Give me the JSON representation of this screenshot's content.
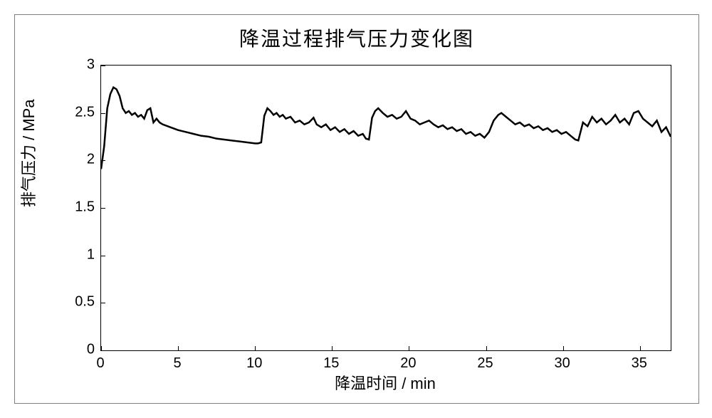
{
  "chart": {
    "type": "line",
    "title": "降温过程排气压力变化图",
    "title_fontsize": 28,
    "xlabel": "降温时间 / min",
    "ylabel": "排气压力 / MPa",
    "label_fontsize": 22,
    "tick_fontsize": 20,
    "xlim": [
      0,
      37
    ],
    "ylim": [
      0,
      3
    ],
    "xticks": [
      0,
      5,
      10,
      15,
      20,
      25,
      30,
      35
    ],
    "yticks": [
      0,
      0.5,
      1,
      1.5,
      2,
      2.5,
      3
    ],
    "line_color": "#000000",
    "line_width": 2.5,
    "background_color": "#ffffff",
    "border_color": "#000000",
    "outer_border_color": "#808080",
    "data": [
      [
        0.0,
        1.91
      ],
      [
        0.2,
        2.15
      ],
      [
        0.4,
        2.55
      ],
      [
        0.6,
        2.7
      ],
      [
        0.8,
        2.77
      ],
      [
        1.0,
        2.75
      ],
      [
        1.2,
        2.68
      ],
      [
        1.4,
        2.55
      ],
      [
        1.6,
        2.5
      ],
      [
        1.8,
        2.52
      ],
      [
        2.0,
        2.48
      ],
      [
        2.2,
        2.5
      ],
      [
        2.4,
        2.46
      ],
      [
        2.6,
        2.48
      ],
      [
        2.8,
        2.44
      ],
      [
        3.0,
        2.53
      ],
      [
        3.2,
        2.55
      ],
      [
        3.4,
        2.4
      ],
      [
        3.6,
        2.44
      ],
      [
        3.8,
        2.4
      ],
      [
        4.0,
        2.38
      ],
      [
        4.5,
        2.35
      ],
      [
        5.0,
        2.32
      ],
      [
        5.5,
        2.3
      ],
      [
        6.0,
        2.28
      ],
      [
        6.5,
        2.26
      ],
      [
        7.0,
        2.25
      ],
      [
        7.5,
        2.23
      ],
      [
        8.0,
        2.22
      ],
      [
        8.5,
        2.21
      ],
      [
        9.0,
        2.2
      ],
      [
        9.5,
        2.19
      ],
      [
        10.0,
        2.18
      ],
      [
        10.2,
        2.18
      ],
      [
        10.4,
        2.19
      ],
      [
        10.6,
        2.47
      ],
      [
        10.8,
        2.55
      ],
      [
        11.0,
        2.52
      ],
      [
        11.2,
        2.48
      ],
      [
        11.4,
        2.5
      ],
      [
        11.6,
        2.46
      ],
      [
        11.8,
        2.48
      ],
      [
        12.0,
        2.44
      ],
      [
        12.3,
        2.46
      ],
      [
        12.6,
        2.4
      ],
      [
        12.9,
        2.42
      ],
      [
        13.2,
        2.38
      ],
      [
        13.5,
        2.4
      ],
      [
        13.8,
        2.45
      ],
      [
        14.0,
        2.38
      ],
      [
        14.3,
        2.35
      ],
      [
        14.6,
        2.38
      ],
      [
        14.9,
        2.32
      ],
      [
        15.2,
        2.35
      ],
      [
        15.5,
        2.3
      ],
      [
        15.8,
        2.33
      ],
      [
        16.1,
        2.28
      ],
      [
        16.4,
        2.31
      ],
      [
        16.7,
        2.26
      ],
      [
        17.0,
        2.28
      ],
      [
        17.2,
        2.23
      ],
      [
        17.4,
        2.22
      ],
      [
        17.6,
        2.45
      ],
      [
        17.8,
        2.52
      ],
      [
        18.0,
        2.55
      ],
      [
        18.3,
        2.5
      ],
      [
        18.6,
        2.46
      ],
      [
        18.9,
        2.48
      ],
      [
        19.2,
        2.44
      ],
      [
        19.5,
        2.46
      ],
      [
        19.8,
        2.52
      ],
      [
        20.1,
        2.44
      ],
      [
        20.4,
        2.42
      ],
      [
        20.7,
        2.38
      ],
      [
        21.0,
        2.4
      ],
      [
        21.3,
        2.42
      ],
      [
        21.6,
        2.38
      ],
      [
        21.9,
        2.35
      ],
      [
        22.2,
        2.37
      ],
      [
        22.5,
        2.33
      ],
      [
        22.8,
        2.35
      ],
      [
        23.1,
        2.31
      ],
      [
        23.4,
        2.33
      ],
      [
        23.7,
        2.28
      ],
      [
        24.0,
        2.3
      ],
      [
        24.3,
        2.26
      ],
      [
        24.6,
        2.28
      ],
      [
        24.9,
        2.24
      ],
      [
        25.2,
        2.3
      ],
      [
        25.5,
        2.42
      ],
      [
        25.8,
        2.48
      ],
      [
        26.0,
        2.5
      ],
      [
        26.3,
        2.46
      ],
      [
        26.6,
        2.42
      ],
      [
        26.9,
        2.38
      ],
      [
        27.2,
        2.4
      ],
      [
        27.5,
        2.36
      ],
      [
        27.8,
        2.38
      ],
      [
        28.1,
        2.34
      ],
      [
        28.4,
        2.36
      ],
      [
        28.7,
        2.32
      ],
      [
        29.0,
        2.34
      ],
      [
        29.3,
        2.3
      ],
      [
        29.6,
        2.32
      ],
      [
        29.9,
        2.28
      ],
      [
        30.2,
        2.3
      ],
      [
        30.5,
        2.26
      ],
      [
        30.8,
        2.22
      ],
      [
        31.0,
        2.21
      ],
      [
        31.3,
        2.4
      ],
      [
        31.6,
        2.36
      ],
      [
        31.9,
        2.46
      ],
      [
        32.2,
        2.4
      ],
      [
        32.5,
        2.44
      ],
      [
        32.8,
        2.38
      ],
      [
        33.1,
        2.42
      ],
      [
        33.4,
        2.48
      ],
      [
        33.7,
        2.4
      ],
      [
        34.0,
        2.44
      ],
      [
        34.3,
        2.38
      ],
      [
        34.6,
        2.5
      ],
      [
        34.9,
        2.52
      ],
      [
        35.2,
        2.44
      ],
      [
        35.5,
        2.4
      ],
      [
        35.8,
        2.36
      ],
      [
        36.1,
        2.42
      ],
      [
        36.4,
        2.3
      ],
      [
        36.7,
        2.35
      ],
      [
        37.0,
        2.25
      ]
    ]
  }
}
